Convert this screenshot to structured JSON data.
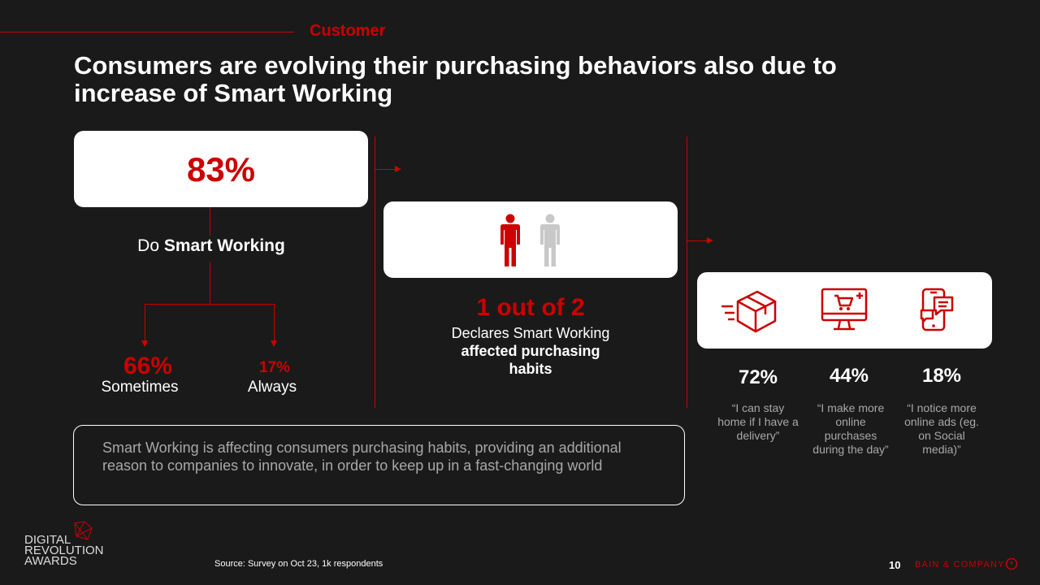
{
  "header": {
    "section_label": "Customer",
    "title_line1": "Consumers are evolving their purchasing behaviors also due to",
    "title_line2": "increase of Smart Working"
  },
  "left_block": {
    "main_percent": "83%",
    "do_prefix": "Do",
    "do_bold": "Smart Working",
    "sometimes_percent": "66%",
    "sometimes_label": "Sometimes",
    "always_percent": "17%",
    "always_label": "Always"
  },
  "middle_block": {
    "ratio": "1 out of 2",
    "line1": "Declares Smart Working",
    "line2": "affected purchasing",
    "line3": "habits",
    "icons": [
      "person-red-icon",
      "person-grey-icon"
    ]
  },
  "right_block": {
    "items": [
      {
        "icon": "delivery-box-icon",
        "percent": "72%",
        "quote": "“I can stay home if I have a delivery”"
      },
      {
        "icon": "online-shopping-monitor-icon",
        "percent": "44%",
        "quote": "“I make more online purchases during the day”"
      },
      {
        "icon": "smartphone-chat-icon",
        "percent": "18%",
        "quote": "“I notice more online ads (eg. on Social media)”"
      }
    ]
  },
  "summary": {
    "text": "Smart Working is affecting consumers purchasing habits, providing an additional reason to companies to innovate, in order to keep up in a fast-changing world"
  },
  "footer": {
    "logo_line1": "DIGITAL",
    "logo_line2": "REVOLUTION",
    "logo_line3": "AWARDS",
    "source": "Source: Survey on Oct 23, 1k respondents",
    "page_number": "10",
    "company": "BAIN & COMPANY"
  },
  "colors": {
    "accent": "#cc0000",
    "background": "#1a1a1a",
    "card": "#ffffff",
    "muted_text": "#a8a8a8",
    "grey_icon": "#c8c8c8"
  }
}
